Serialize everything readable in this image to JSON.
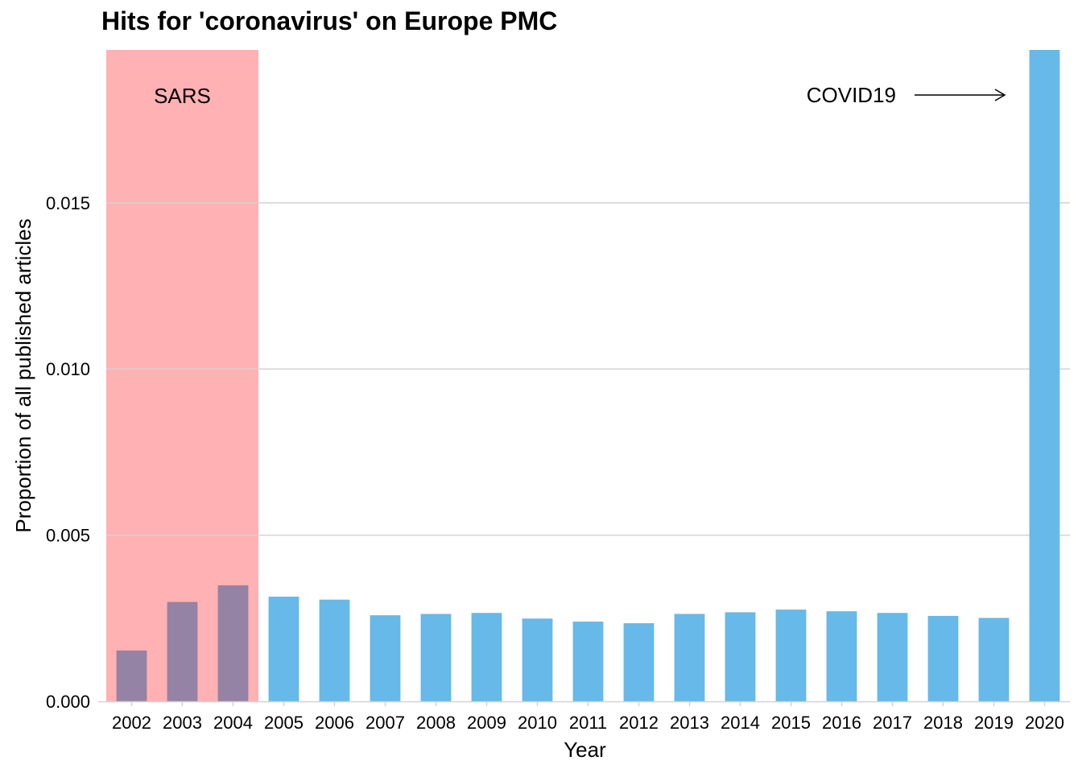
{
  "chart_data": {
    "type": "bar",
    "title": "Hits for 'coronavirus' on Europe PMC",
    "xlabel": "Year",
    "ylabel": "Proportion of all published articles",
    "categories": [
      "2002",
      "2003",
      "2004",
      "2005",
      "2006",
      "2007",
      "2008",
      "2009",
      "2010",
      "2011",
      "2012",
      "2013",
      "2014",
      "2015",
      "2016",
      "2017",
      "2018",
      "2019",
      "2020"
    ],
    "values": [
      0.00153,
      0.00299,
      0.00349,
      0.00315,
      0.00306,
      0.00259,
      0.00263,
      0.00266,
      0.00249,
      0.0024,
      0.00235,
      0.00263,
      0.00268,
      0.00276,
      0.00271,
      0.00266,
      0.00257,
      0.00251,
      0.01993
    ],
    "ylim": [
      0,
      0.0196
    ],
    "yticks": [
      0.0,
      0.005,
      0.01,
      0.015
    ],
    "ytick_labels": [
      "0.000",
      "0.005",
      "0.010",
      "0.015"
    ],
    "grid": "horizontal",
    "legend": "none",
    "colors": {
      "bar": "#66b9e8",
      "highlight_band": "#ffb1b3",
      "overlap_bar": "#9483a4",
      "grid": "#d3d3d3"
    },
    "annotations": [
      {
        "text": "SARS",
        "type": "shaded_band",
        "from": "2002",
        "to": "2004"
      },
      {
        "text": "COVID19",
        "type": "arrow",
        "target": "2020"
      }
    ]
  }
}
